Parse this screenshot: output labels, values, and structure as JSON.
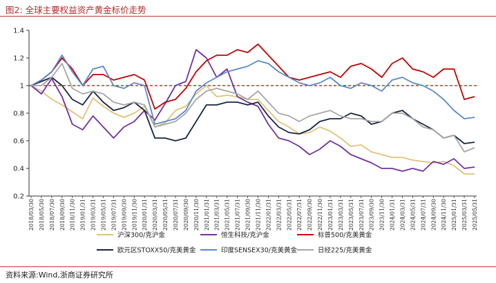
{
  "header": {
    "title": "图2:  全球主要权益资产黄金标价走势"
  },
  "footer": {
    "source": "资料来源:Wind,浙商证券研究所"
  },
  "chart_data": {
    "type": "line",
    "title": "全球主要权益资产黄金标价走势",
    "xlabel": "",
    "ylabel": "",
    "ylim": [
      0.2,
      1.4
    ],
    "yticks": [
      "0.2",
      "0.4",
      "0.6",
      "0.8",
      "1",
      "1.2",
      "1.4"
    ],
    "reference_line": {
      "value": 1.0,
      "color": "#cc0000",
      "style": "dashed"
    },
    "grid": false,
    "legend_position": "bottom",
    "x": [
      "2018/03/30",
      "2018/05/30",
      "2018/07/30",
      "2018/09/30",
      "2018/11/30",
      "2019/01/31",
      "2019/03/31",
      "2019/05/31",
      "2019/07/31",
      "2019/09/30",
      "2019/11/30",
      "2020/01/31",
      "2020/03/31",
      "2020/05/31",
      "2020/07/31",
      "2020/09/30",
      "2020/11/30",
      "2021/01/31",
      "2021/03/31",
      "2021/05/31",
      "2021/07/31",
      "2021/09/30",
      "2021/11/30",
      "2022/01/31",
      "2022/03/31",
      "2022/05/31",
      "2022/07/31",
      "2022/09/30",
      "2022/11/30",
      "2023/01/31",
      "2023/03/31",
      "2023/05/31",
      "2023/07/31",
      "2023/09/30",
      "2023/11/30",
      "2024/01/31",
      "2024/03/31",
      "2024/05/31",
      "2024/07/31",
      "2024/09/30",
      "2024/11/30",
      "2025/01/31",
      "2025/03/31",
      "2025/05/31"
    ],
    "series": [
      {
        "name": "沪深300/克沪金",
        "color": "#e0c27a",
        "values": [
          1.0,
          0.96,
          0.9,
          0.86,
          0.81,
          0.76,
          0.91,
          0.85,
          0.8,
          0.77,
          0.8,
          0.85,
          0.7,
          0.73,
          0.82,
          0.85,
          0.94,
          1.0,
          0.92,
          0.93,
          0.92,
          0.9,
          0.9,
          0.82,
          0.74,
          0.7,
          0.65,
          0.66,
          0.7,
          0.67,
          0.62,
          0.56,
          0.57,
          0.52,
          0.5,
          0.48,
          0.48,
          0.46,
          0.45,
          0.44,
          0.45,
          0.42,
          0.36,
          0.36
        ]
      },
      {
        "name": "恒生科技/克沪金",
        "color": "#7030a0",
        "values": [
          1.0,
          0.94,
          1.05,
          0.92,
          0.72,
          0.68,
          0.78,
          0.7,
          0.62,
          0.7,
          0.74,
          0.82,
          0.75,
          0.87,
          1.0,
          1.03,
          1.26,
          1.2,
          1.06,
          1.12,
          0.92,
          0.88,
          0.85,
          0.72,
          0.62,
          0.6,
          0.56,
          0.5,
          0.54,
          0.6,
          0.56,
          0.5,
          0.47,
          0.44,
          0.4,
          0.4,
          0.38,
          0.4,
          0.38,
          0.45,
          0.43,
          0.47,
          0.4,
          0.41
        ]
      },
      {
        "name": "标普500/克美黄金",
        "color": "#c00000",
        "values": [
          1.0,
          1.04,
          1.1,
          1.2,
          1.12,
          1.0,
          1.08,
          1.08,
          1.04,
          1.06,
          1.08,
          1.04,
          0.83,
          0.88,
          0.9,
          0.98,
          1.1,
          1.18,
          1.22,
          1.22,
          1.26,
          1.24,
          1.3,
          1.22,
          1.14,
          1.06,
          1.04,
          1.06,
          1.08,
          1.1,
          1.06,
          1.14,
          1.16,
          1.12,
          1.06,
          1.16,
          1.2,
          1.12,
          1.1,
          1.06,
          1.12,
          1.12,
          0.9,
          0.92
        ]
      },
      {
        "name": "欧元区STOXX50/克美黄金",
        "color": "#17243f",
        "values": [
          1.0,
          1.03,
          1.06,
          1.0,
          0.9,
          0.86,
          0.96,
          0.88,
          0.82,
          0.84,
          0.88,
          0.82,
          0.62,
          0.62,
          0.6,
          0.62,
          0.74,
          0.86,
          0.86,
          0.88,
          0.88,
          0.86,
          0.88,
          0.78,
          0.7,
          0.66,
          0.65,
          0.68,
          0.74,
          0.76,
          0.76,
          0.8,
          0.78,
          0.72,
          0.74,
          0.8,
          0.82,
          0.76,
          0.72,
          0.68,
          0.62,
          0.64,
          0.58,
          0.59
        ]
      },
      {
        "name": "印度SENSEX30/克美黄金",
        "color": "#5b87c7",
        "values": [
          1.0,
          1.04,
          1.1,
          1.22,
          1.1,
          1.0,
          1.12,
          1.14,
          1.0,
          0.98,
          1.02,
          1.0,
          0.72,
          0.74,
          0.76,
          0.82,
          0.96,
          1.02,
          1.06,
          1.1,
          1.12,
          1.14,
          1.18,
          1.16,
          1.1,
          1.06,
          1.02,
          1.0,
          1.02,
          1.06,
          1.0,
          0.98,
          1.02,
          1.0,
          0.96,
          1.04,
          1.06,
          1.02,
          1.0,
          0.96,
          0.9,
          0.82,
          0.76,
          0.77
        ]
      },
      {
        "name": "日经225/克美黄金",
        "color": "#a6a6a6",
        "values": [
          1.0,
          1.0,
          1.06,
          1.16,
          0.98,
          0.94,
          0.96,
          0.94,
          0.88,
          0.86,
          0.88,
          0.86,
          0.7,
          0.72,
          0.74,
          0.8,
          0.9,
          0.96,
          0.98,
          0.96,
          0.94,
          0.9,
          0.96,
          0.88,
          0.8,
          0.78,
          0.74,
          0.78,
          0.8,
          0.82,
          0.78,
          0.76,
          0.76,
          0.74,
          0.74,
          0.8,
          0.8,
          0.76,
          0.7,
          0.68,
          0.62,
          0.64,
          0.52,
          0.55
        ]
      }
    ]
  }
}
